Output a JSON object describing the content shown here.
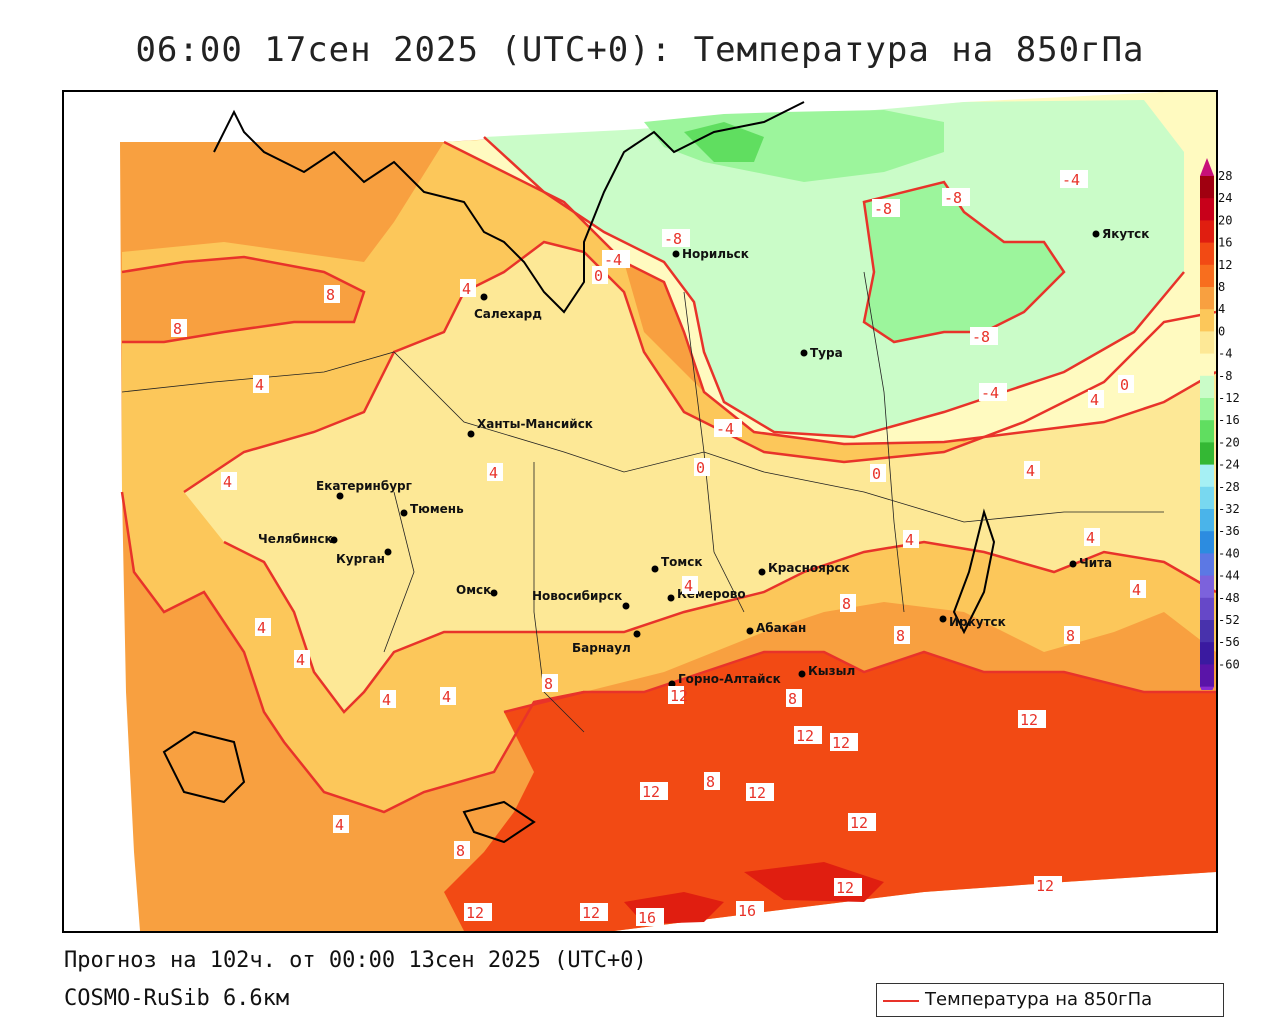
{
  "title": "06:00 17сен 2025 (UTC+0): Температура на 850гПа",
  "footer": {
    "forecast": "Прогноз на 102ч. от 00:00 13сен 2025 (UTC+0)",
    "model": "COSMO-RuSib 6.6км"
  },
  "legend": {
    "label": "Температура на 850гПа",
    "line_color": "#e8332a"
  },
  "colorbar": {
    "labels": [
      "28",
      "24",
      "20",
      "16",
      "12",
      "8",
      "4",
      "0",
      "-4",
      "-8",
      "-12",
      "-16",
      "-20",
      "-24",
      "-28",
      "-32",
      "-36",
      "-40",
      "-44",
      "-48",
      "-52",
      "-56",
      "-60"
    ],
    "colors": [
      "#a00010",
      "#c8001a",
      "#e01e10",
      "#f24a14",
      "#f86e1e",
      "#f8a040",
      "#fcc75a",
      "#fde896",
      "#fffac0",
      "#cafcc8",
      "#9cf59c",
      "#60de60",
      "#34b834",
      "#a6f0f4",
      "#78d8f0",
      "#4ab4ea",
      "#2c8ce0",
      "#5c78e4",
      "#7c62dc",
      "#6648c8",
      "#4832ac",
      "#3a1aa0",
      "#5a14a8"
    ]
  },
  "cities": [
    {
      "name": "Норильск"
    },
    {
      "name": "Якутск"
    },
    {
      "name": "Салехард"
    },
    {
      "name": "Тура"
    },
    {
      "name": "Ханты-Мансийск"
    },
    {
      "name": "Екатеринбург"
    },
    {
      "name": "Тюмень"
    },
    {
      "name": "Челябинск"
    },
    {
      "name": "Курган"
    },
    {
      "name": "Омск"
    },
    {
      "name": "Новосибирск"
    },
    {
      "name": "Томск"
    },
    {
      "name": "Красноярск"
    },
    {
      "name": "Кемерово"
    },
    {
      "name": "Барнаул"
    },
    {
      "name": "Абакан"
    },
    {
      "name": "Иркутск"
    },
    {
      "name": "Горно-Алтайск"
    },
    {
      "name": "Кызыл"
    },
    {
      "name": "Чита"
    }
  ],
  "isotherm_labels": [
    "8",
    "8",
    "4",
    "4",
    "4",
    "4",
    "4",
    "4",
    "4",
    "4",
    "4",
    "4",
    "4",
    "4",
    "4",
    "4",
    "4",
    "0",
    "0",
    "0",
    "0",
    "-4",
    "-4",
    "-4",
    "-4",
    "-8",
    "-8",
    "-8",
    "-8",
    "8",
    "8",
    "8",
    "8",
    "8",
    "8",
    "8",
    "12",
    "12",
    "12",
    "12",
    "12",
    "12",
    "12",
    "12",
    "12",
    "12",
    "12",
    "16",
    "16"
  ]
}
